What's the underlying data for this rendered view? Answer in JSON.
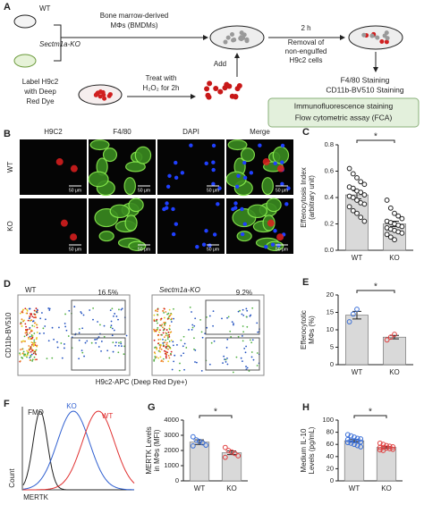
{
  "panel_a": {
    "label": "A",
    "wt": "WT",
    "ko": "Sectm1a-KO",
    "bmdm": [
      "Bone marrow-derived",
      "MΦs (BMDMs)"
    ],
    "label_h9c2": [
      "Label H9c2",
      "with Deep",
      "Red Dye"
    ],
    "treat": [
      "Treat with",
      "H₂O₂ for 2h"
    ],
    "add": "Add",
    "time": "2 h",
    "removal": [
      "Removal of",
      "non-engulfed",
      "H9c2 cells"
    ],
    "staining": [
      "F4/80 Staining",
      "CD11b-BV510 Staining"
    ],
    "assays": [
      "Immunofluorescence staining",
      "Flow cytometric assay (FCA)"
    ]
  },
  "panel_b": {
    "label": "B",
    "columns": [
      "H9C2",
      "F4/80",
      "DAPI",
      "Merge"
    ],
    "rows": [
      "WT",
      "KO"
    ],
    "scale_bar": "50 μm"
  },
  "panel_d": {
    "label": "D",
    "plots": [
      {
        "title": "WT",
        "gate": "16.5%"
      },
      {
        "title": "Sectm1a-KO",
        "gate": "9.2%"
      }
    ],
    "ylabel": "CD11b-BV510",
    "xlabel": "H9c2-APC (Deep Red Dye+)"
  },
  "panel_f": {
    "label": "F",
    "curves": [
      {
        "name": "FMO",
        "color": "#222222"
      },
      {
        "name": "KO",
        "color": "#2f5fd0"
      },
      {
        "name": "WT",
        "color": "#e03030"
      }
    ],
    "ylabel": "Count",
    "xlabel": "MERTK"
  },
  "chart_data": [
    {
      "type": "bar",
      "label": "C",
      "ylabel": [
        "Efferocytosis Index",
        "(arbitrary unit)"
      ],
      "categories": [
        "WT",
        "KO"
      ],
      "values": [
        0.42,
        0.2
      ],
      "errors": [
        0.03,
        0.02
      ],
      "color": "#d9d9d9",
      "point_colors": [
        "#ffffff",
        "#ffffff"
      ],
      "points": [
        [
          0.62,
          0.58,
          0.55,
          0.52,
          0.5,
          0.48,
          0.47,
          0.45,
          0.44,
          0.42,
          0.41,
          0.4,
          0.38,
          0.36,
          0.35,
          0.33,
          0.3,
          0.28,
          0.25,
          0.22
        ],
        [
          0.38,
          0.32,
          0.28,
          0.26,
          0.24,
          0.22,
          0.21,
          0.2,
          0.19,
          0.18,
          0.17,
          0.16,
          0.15,
          0.14,
          0.13,
          0.12,
          0.1,
          0.08
        ]
      ],
      "ylim": [
        0,
        0.8
      ],
      "yticks": [
        {
          "value": 0,
          "label": "0.0"
        },
        0.2,
        0.4,
        0.6,
        0.8
      ],
      "annotation": "*"
    },
    {
      "type": "bar",
      "label": "E",
      "ylabel": [
        "Efferocytotic",
        "MΦs (%)"
      ],
      "categories": [
        "WT",
        "KO"
      ],
      "values": [
        14.2,
        7.9
      ],
      "errors": [
        1.1,
        0.5
      ],
      "color": "#d9d9d9",
      "point_colors": [
        "#3a6fd8",
        "#e04040"
      ],
      "points": [
        [
          12.3,
          14.5,
          15.9
        ],
        [
          7.1,
          7.9,
          8.7
        ]
      ],
      "ylim": [
        0,
        20
      ],
      "yticks": [
        0,
        5,
        10,
        15,
        20
      ],
      "annotation": "*"
    },
    {
      "type": "bar",
      "label": "G",
      "ylabel": [
        "MERTK Levels",
        "in MΦs (MFI)"
      ],
      "categories": [
        "WT",
        "KO"
      ],
      "values": [
        2550,
        1850
      ],
      "errors": [
        150,
        120
      ],
      "color": "#d9d9d9",
      "point_colors": [
        "#3a6fd8",
        "#e04040"
      ],
      "points": [
        [
          2900,
          2700,
          2600,
          2500,
          2350,
          2300
        ],
        [
          2200,
          2000,
          1900,
          1800,
          1650,
          1550
        ]
      ],
      "ylim": [
        0,
        4000
      ],
      "yticks": [
        0,
        1000,
        2000,
        3000,
        4000
      ],
      "annotation": "*"
    },
    {
      "type": "bar",
      "label": "H",
      "ylabel": [
        "Medium IL-10",
        "Levels (pg/mL)"
      ],
      "categories": [
        "WT",
        "KO"
      ],
      "values": [
        66,
        55
      ],
      "errors": [
        2,
        1.5
      ],
      "color": "#d9d9d9",
      "point_colors": [
        "#3a6fd8",
        "#e04040"
      ],
      "points": [
        [
          76,
          74,
          72,
          70,
          69,
          68,
          67,
          66,
          65,
          64,
          63,
          62,
          60,
          58,
          56
        ],
        [
          62,
          60,
          58,
          57,
          56,
          55,
          55,
          54,
          53,
          52,
          51,
          50
        ]
      ],
      "ylim": [
        0,
        100
      ],
      "yticks": [
        0,
        20,
        40,
        60,
        80,
        100
      ],
      "annotation": "*"
    }
  ]
}
